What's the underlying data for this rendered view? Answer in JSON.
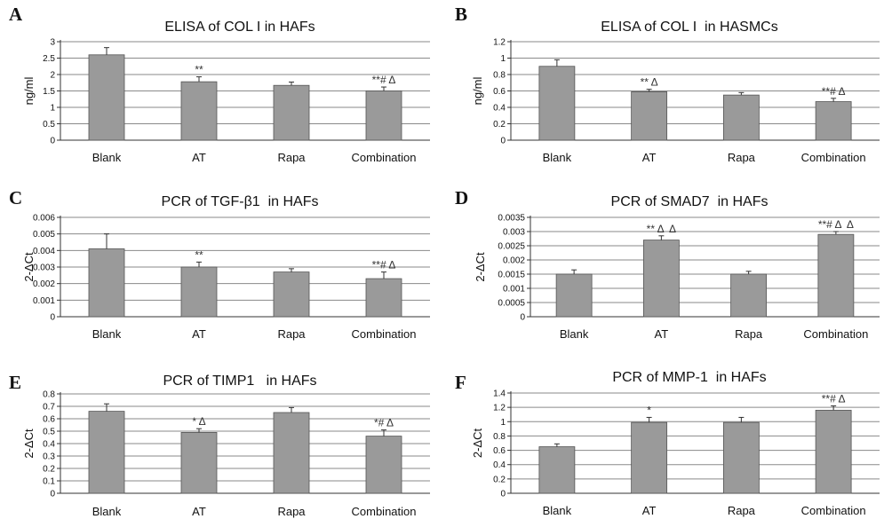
{
  "colors": {
    "bar": "#9a9a9a",
    "bar_edge": "#555555",
    "grid": "#8a8a8a",
    "axis": "#333333"
  },
  "chart_data": [
    {
      "panel": "A",
      "type": "bar",
      "title": "ELISA of COL I in HAFs",
      "ylabel": "ng/ml",
      "categories": [
        "Blank",
        "AT",
        "Rapa",
        "Combination"
      ],
      "values": [
        2.6,
        1.78,
        1.67,
        1.5
      ],
      "errors": [
        0.22,
        0.15,
        0.1,
        0.12
      ],
      "annotations": [
        "",
        "**",
        "",
        "**# Δ"
      ],
      "ylim": [
        0,
        3
      ],
      "yticks": [
        {
          "v": 0,
          "t": "0"
        },
        {
          "v": 0.5,
          "t": "0.5"
        },
        {
          "v": 1,
          "t": "1"
        },
        {
          "v": 1.5,
          "t": "1.5"
        },
        {
          "v": 2,
          "t": "2"
        },
        {
          "v": 2.5,
          "t": "2.5"
        },
        {
          "v": 3,
          "t": "3"
        }
      ],
      "grid": true
    },
    {
      "panel": "B",
      "type": "bar",
      "title": "ELISA of COL I  in HASMCs",
      "ylabel": "ng/ml",
      "categories": [
        "Blank",
        "AT",
        "Rapa",
        "Combination"
      ],
      "values": [
        0.9,
        0.59,
        0.55,
        0.47
      ],
      "errors": [
        0.08,
        0.03,
        0.03,
        0.04
      ],
      "annotations": [
        "",
        "** Δ",
        "",
        "**# Δ"
      ],
      "ylim": [
        0,
        1.2
      ],
      "yticks": [
        {
          "v": 0,
          "t": "0"
        },
        {
          "v": 0.2,
          "t": "0.2"
        },
        {
          "v": 0.4,
          "t": "0.4"
        },
        {
          "v": 0.6,
          "t": "0.6"
        },
        {
          "v": 0.8,
          "t": "0.8"
        },
        {
          "v": 1,
          "t": "1"
        },
        {
          "v": 1.2,
          "t": "1.2"
        }
      ],
      "grid": true
    },
    {
      "panel": "C",
      "type": "bar",
      "title": "PCR of TGF-β1  in HAFs",
      "ylabel": "2-ΔCt",
      "categories": [
        "Blank",
        "AT",
        "Rapa",
        "Combination"
      ],
      "values": [
        0.0041,
        0.003,
        0.0027,
        0.0023
      ],
      "errors": [
        0.0009,
        0.0003,
        0.0002,
        0.0004
      ],
      "annotations": [
        "",
        "**",
        "",
        "**# Δ"
      ],
      "ylim": [
        0,
        0.006
      ],
      "yticks": [
        {
          "v": 0,
          "t": "0"
        },
        {
          "v": 0.001,
          "t": "0.001"
        },
        {
          "v": 0.002,
          "t": "0.002"
        },
        {
          "v": 0.003,
          "t": "0.003"
        },
        {
          "v": 0.004,
          "t": "0.004"
        },
        {
          "v": 0.005,
          "t": "0.005"
        },
        {
          "v": 0.006,
          "t": "0.006"
        }
      ],
      "grid": true
    },
    {
      "panel": "D",
      "type": "bar",
      "title": "PCR of SMAD7  in HAFs",
      "ylabel": "2-ΔCt",
      "categories": [
        "Blank",
        "AT",
        "Rapa",
        "Combination"
      ],
      "values": [
        0.0015,
        0.0027,
        0.0015,
        0.0029
      ],
      "errors": [
        0.00015,
        0.00015,
        0.0001,
        0.0001
      ],
      "annotations": [
        "",
        "** Δ  Δ",
        "",
        "**# Δ  Δ"
      ],
      "ylim": [
        0,
        0.0035
      ],
      "yticks": [
        {
          "v": 0,
          "t": "0"
        },
        {
          "v": 0.0005,
          "t": "0.0005"
        },
        {
          "v": 0.001,
          "t": "0.001"
        },
        {
          "v": 0.0015,
          "t": "0.0015"
        },
        {
          "v": 0.002,
          "t": "0.002"
        },
        {
          "v": 0.0025,
          "t": "0.0025"
        },
        {
          "v": 0.003,
          "t": "0.003"
        },
        {
          "v": 0.0035,
          "t": "0.0035"
        }
      ],
      "grid": true
    },
    {
      "panel": "E",
      "type": "bar",
      "title": "PCR of TIMP1   in HAFs",
      "ylabel": "2-ΔCt",
      "categories": [
        "Blank",
        "AT",
        "Rapa",
        "Combination"
      ],
      "values": [
        0.66,
        0.49,
        0.65,
        0.46
      ],
      "errors": [
        0.06,
        0.03,
        0.04,
        0.05
      ],
      "annotations": [
        "",
        "* Δ",
        "",
        "*# Δ"
      ],
      "ylim": [
        0,
        0.8
      ],
      "yticks": [
        {
          "v": 0,
          "t": "0"
        },
        {
          "v": 0.1,
          "t": "0.1"
        },
        {
          "v": 0.2,
          "t": "0.2"
        },
        {
          "v": 0.3,
          "t": "0.3"
        },
        {
          "v": 0.4,
          "t": "0.4"
        },
        {
          "v": 0.5,
          "t": "0.5"
        },
        {
          "v": 0.6,
          "t": "0.6"
        },
        {
          "v": 0.7,
          "t": "0.7"
        },
        {
          "v": 0.8,
          "t": "0.8"
        }
      ],
      "grid": true
    },
    {
      "panel": "F",
      "type": "bar",
      "title": "PCR of MMP-1  in HAFs",
      "ylabel": "2-ΔCt",
      "categories": [
        "Blank",
        "AT",
        "Rapa",
        "Combination"
      ],
      "values": [
        0.65,
        0.99,
        0.99,
        1.16
      ],
      "errors": [
        0.04,
        0.07,
        0.07,
        0.06
      ],
      "annotations": [
        "",
        "*",
        "",
        "**# Δ"
      ],
      "ylim": [
        0,
        1.4
      ],
      "yticks": [
        {
          "v": 0,
          "t": "0"
        },
        {
          "v": 0.2,
          "t": "0.2"
        },
        {
          "v": 0.4,
          "t": "0.4"
        },
        {
          "v": 0.6,
          "t": "0.6"
        },
        {
          "v": 0.8,
          "t": "0.8"
        },
        {
          "v": 1,
          "t": "1"
        },
        {
          "v": 1.2,
          "t": "1.2"
        },
        {
          "v": 1.4,
          "t": "1.4"
        }
      ],
      "grid": true
    }
  ]
}
